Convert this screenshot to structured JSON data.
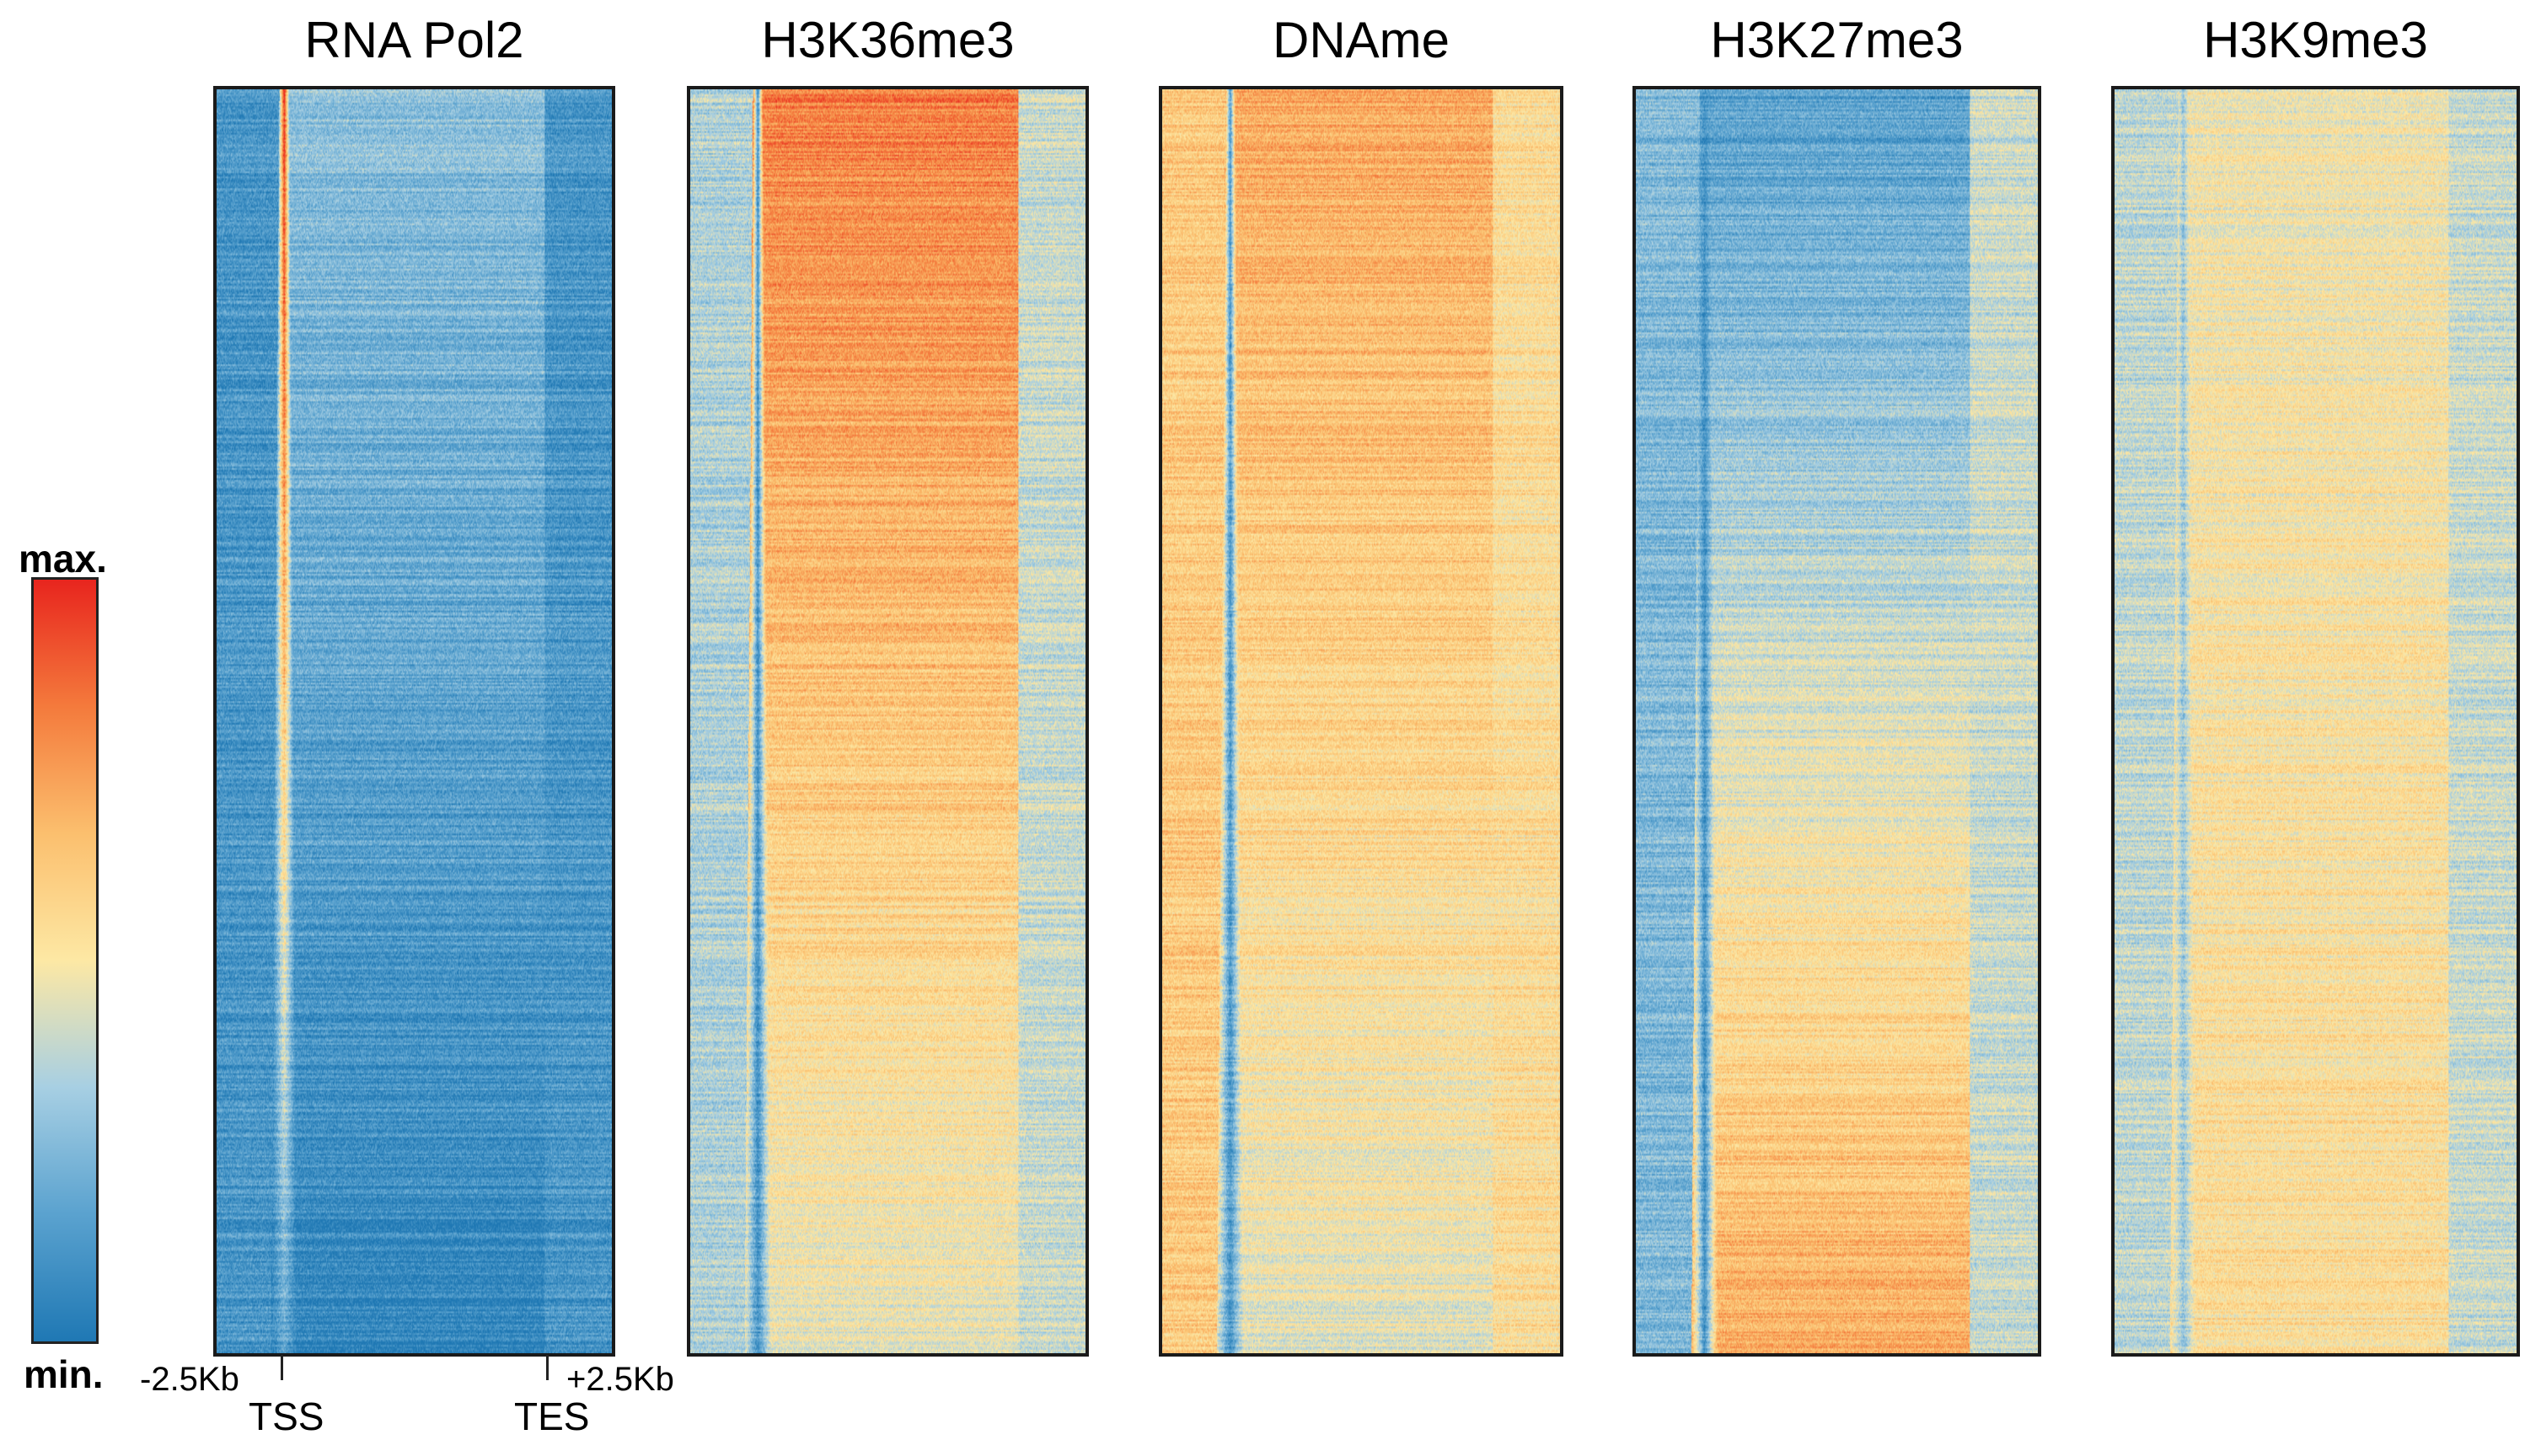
{
  "chart_data": {
    "type": "heatmap",
    "title": "",
    "colorbar": {
      "max_label": "max.",
      "min_label": "min.",
      "colors": [
        "#1f78b4",
        "#5aa2cf",
        "#a7cfe3",
        "#fde8a4",
        "#fbbf6e",
        "#f47a3c",
        "#e8251e"
      ]
    },
    "x_axis": {
      "left_label": "-2.5Kb",
      "right_label": "+2.5Kb",
      "tss_label": "TSS",
      "tes_label": "TES"
    },
    "panels": [
      {
        "name": "RNA Pol2",
        "tss_signal": 1.0,
        "body_signal_top": 0.28,
        "body_signal_bottom": 0.05,
        "flank_signal": 0.12,
        "tes_signal": 0.12
      },
      {
        "name": "H3K36me3",
        "tss_signal": 0.1,
        "body_signal_top": 0.82,
        "body_signal_bottom": 0.45,
        "flank_signal": 0.35,
        "tes_signal": 0.4
      },
      {
        "name": "DNAme",
        "tss_signal": 0.12,
        "body_signal_top": 0.72,
        "body_signal_bottom": 0.45,
        "flank_signal": 0.62,
        "tes_signal": 0.55
      },
      {
        "name": "H3K27me3",
        "tss_signal": 0.1,
        "body_signal_top": 0.15,
        "body_signal_bottom": 0.72,
        "flank_signal": 0.25,
        "tes_signal": 0.4
      },
      {
        "name": "H3K9me3",
        "tss_signal": 0.3,
        "body_signal_top": 0.48,
        "body_signal_bottom": 0.55,
        "flank_signal": 0.38,
        "tes_signal": 0.4
      }
    ]
  }
}
